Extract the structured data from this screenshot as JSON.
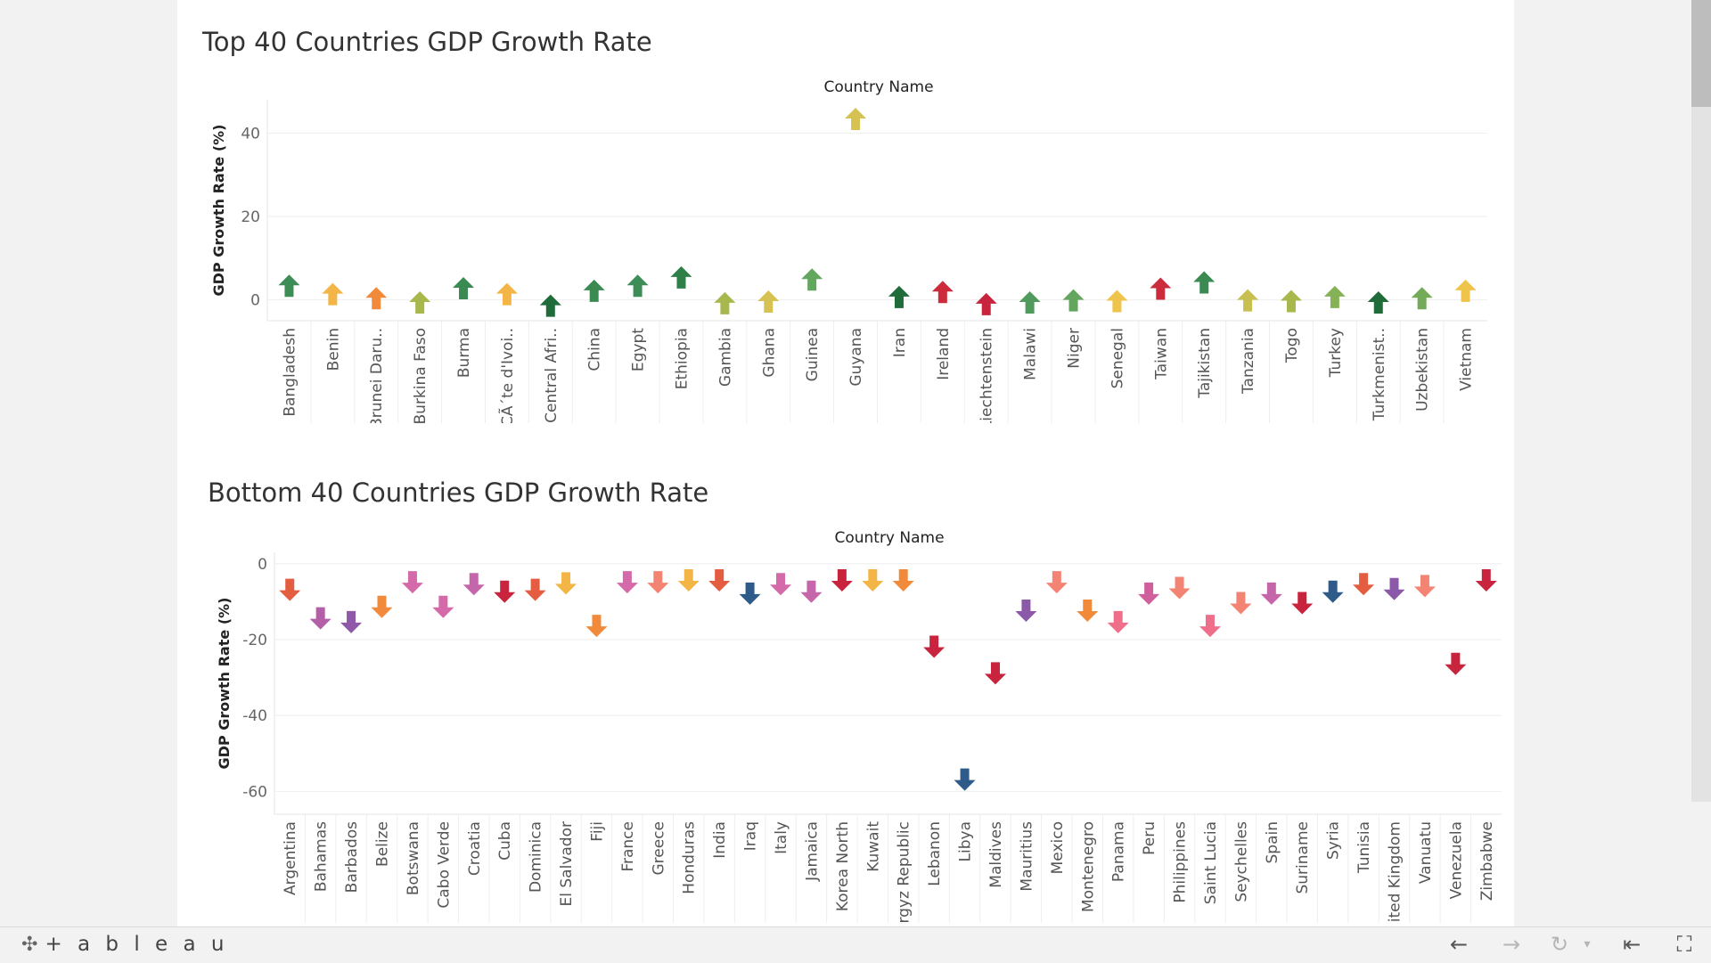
{
  "chart_data": [
    {
      "type": "scatter",
      "marker": "up-arrow",
      "title": "Top 40 Countries  GDP Growth Rate",
      "column_header": "Country Name",
      "ylabel": "GDP Growth Rate (%)",
      "ylim": [
        -5,
        48
      ],
      "yticks": [
        0,
        20,
        40
      ],
      "grid": true,
      "categories": [
        "Bangladesh",
        "Benin",
        "Brunei Daru..",
        "Burkina Faso",
        "Burma",
        "CÃ´te d'Ivoi..",
        "Central Afri..",
        "China",
        "Egypt",
        "Ethiopia",
        "Gambia",
        "Ghana",
        "Guinea",
        "Guyana",
        "Iran",
        "Ireland",
        "Liechtenstein",
        "Malawi",
        "Niger",
        "Senegal",
        "Taiwan",
        "Tajikistan",
        "Tanzania",
        "Togo",
        "Turkey",
        "Turkmenist..",
        "Uzbekistan",
        "Vietnam"
      ],
      "values": [
        3.5,
        1.5,
        0.5,
        -0.5,
        2.9,
        1.5,
        -1.3,
        2.3,
        3.5,
        5.5,
        -0.7,
        -0.3,
        5.0,
        43.5,
        0.8,
        2.0,
        -0.9,
        -0.5,
        0.0,
        -0.2,
        2.8,
        4.3,
        0.0,
        -0.2,
        0.8,
        -0.5,
        0.5,
        2.3
      ],
      "colors": [
        "#3f8d56",
        "#f4b547",
        "#f18b3b",
        "#a9b84d",
        "#3a8a52",
        "#f4b547",
        "#1f6b3a",
        "#3a8a52",
        "#3f8d56",
        "#2f7f48",
        "#a9b84d",
        "#d6c253",
        "#63a65d",
        "#d6c253",
        "#1f6b3a",
        "#cc2b3c",
        "#c8243e",
        "#4f9a5c",
        "#63a65d",
        "#eec44a",
        "#cc2b3c",
        "#3a8a52",
        "#c7bf50",
        "#a9b84d",
        "#86b257",
        "#1f6b3a",
        "#73ab58",
        "#eec44a"
      ]
    },
    {
      "type": "scatter",
      "marker": "down-arrow",
      "title": "Bottom 40 Countries GDP Growth Rate",
      "column_header": "Country Name",
      "ylabel": "GDP Growth Rate (%)",
      "ylim": [
        -66,
        3
      ],
      "yticks": [
        0,
        -20,
        -40,
        -60
      ],
      "grid": true,
      "categories": [
        "Argentina",
        "Bahamas",
        "Barbados",
        "Belize",
        "Botswana",
        "Cabo Verde",
        "Croatia",
        "Cuba",
        "Dominica",
        "El Salvador",
        "Fiji",
        "France",
        "Greece",
        "Honduras",
        "India",
        "Iraq",
        "Italy",
        "Jamaica",
        "Korea North",
        "Kuwait",
        "Kyrgyz Republic",
        "Lebanon",
        "Libya",
        "Maldives",
        "Mauritius",
        "Mexico",
        "Montenegro",
        "Panama",
        "Peru",
        "Philippines",
        "Saint Lucia",
        "Seychelles",
        "Spain",
        "Suriname",
        "Syria",
        "Tunisia",
        "United Kingdom",
        "Vanuatu",
        "Venezuela",
        "Zimbabwe"
      ],
      "values": [
        -7.0,
        -14.5,
        -15.5,
        -11.5,
        -5.0,
        -11.5,
        -5.5,
        -7.5,
        -7.0,
        -5.3,
        -16.5,
        -5.0,
        -5.0,
        -4.5,
        -4.5,
        -8.0,
        -5.5,
        -7.5,
        -4.5,
        -4.5,
        -4.5,
        -22.0,
        -57.0,
        -29.0,
        -12.5,
        -5.0,
        -12.5,
        -15.5,
        -8.0,
        -6.5,
        -16.5,
        -10.5,
        -8.0,
        -10.5,
        -7.5,
        -5.5,
        -6.8,
        -6.0,
        -26.5,
        -4.5
      ],
      "colors": [
        "#e45d41",
        "#b460a8",
        "#9058a8",
        "#f18b3b",
        "#d46aa9",
        "#d46aa9",
        "#c566aa",
        "#c8243e",
        "#e45d41",
        "#f4b547",
        "#f18b3b",
        "#d46aa9",
        "#f38372",
        "#f4b547",
        "#e45d41",
        "#2e5b8a",
        "#d46aa9",
        "#c566aa",
        "#c8243e",
        "#f4b547",
        "#f18b3b",
        "#c8243e",
        "#2e5b8a",
        "#c8243e",
        "#8c58a8",
        "#f38372",
        "#f18b3b",
        "#ef6f8a",
        "#d0609d",
        "#f38372",
        "#ef6f8a",
        "#f38372",
        "#c566aa",
        "#c8243e",
        "#2e5b8a",
        "#e45d41",
        "#8c58a8",
        "#f38372",
        "#c8243e",
        "#c8243e"
      ]
    }
  ],
  "toolbar": {
    "logo_text": "+ a b l e a u",
    "logo_icon": "tableau-cross-icon",
    "undo_icon": "arrow-left-icon",
    "redo_icon": "arrow-right-icon",
    "revert_icon": "revert-icon",
    "dropdown_icon": "caret-down-icon",
    "reset_icon": "reset-to-start-icon",
    "fullscreen_icon": "fullscreen-icon"
  }
}
